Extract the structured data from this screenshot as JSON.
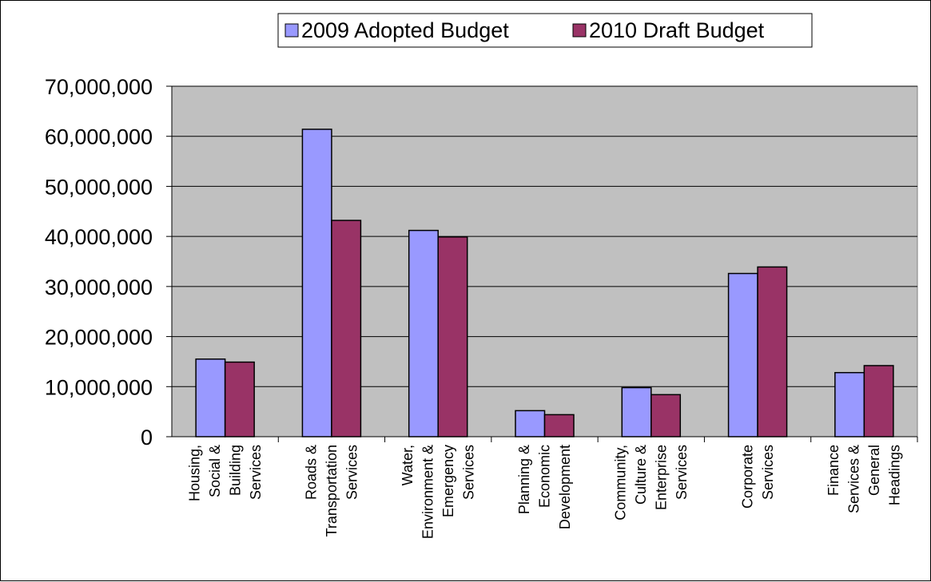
{
  "chart_data": {
    "type": "bar",
    "categories": [
      [
        "Housing,",
        "Social &",
        "Building",
        "Services"
      ],
      [
        "Roads &",
        "Transportation",
        "Services"
      ],
      [
        "Water,",
        "Environment &",
        "Emergency",
        "Services"
      ],
      [
        "Planning &",
        "Economic",
        "Development"
      ],
      [
        "Community,",
        "Culture &",
        "Enterprise",
        "Services"
      ],
      [
        "Corporate",
        "Services"
      ],
      [
        "Finance",
        "Services &",
        "General",
        "Headings"
      ]
    ],
    "series": [
      {
        "name": "2009 Adopted Budget",
        "color": "#9999ff",
        "values": [
          15500000,
          61400000,
          41200000,
          5200000,
          9800000,
          32600000,
          12800000
        ]
      },
      {
        "name": "2010 Draft Budget",
        "color": "#993366",
        "values": [
          14900000,
          43200000,
          39900000,
          4400000,
          8400000,
          33900000,
          14200000
        ]
      }
    ],
    "yticks": [
      "0",
      "10,000,000",
      "20,000,000",
      "30,000,000",
      "40,000,000",
      "50,000,000",
      "60,000,000",
      "70,000,000"
    ],
    "ylim": [
      0,
      70000000
    ],
    "grid": true,
    "legend_position": "top",
    "plot_background": "#c0c0c0"
  }
}
